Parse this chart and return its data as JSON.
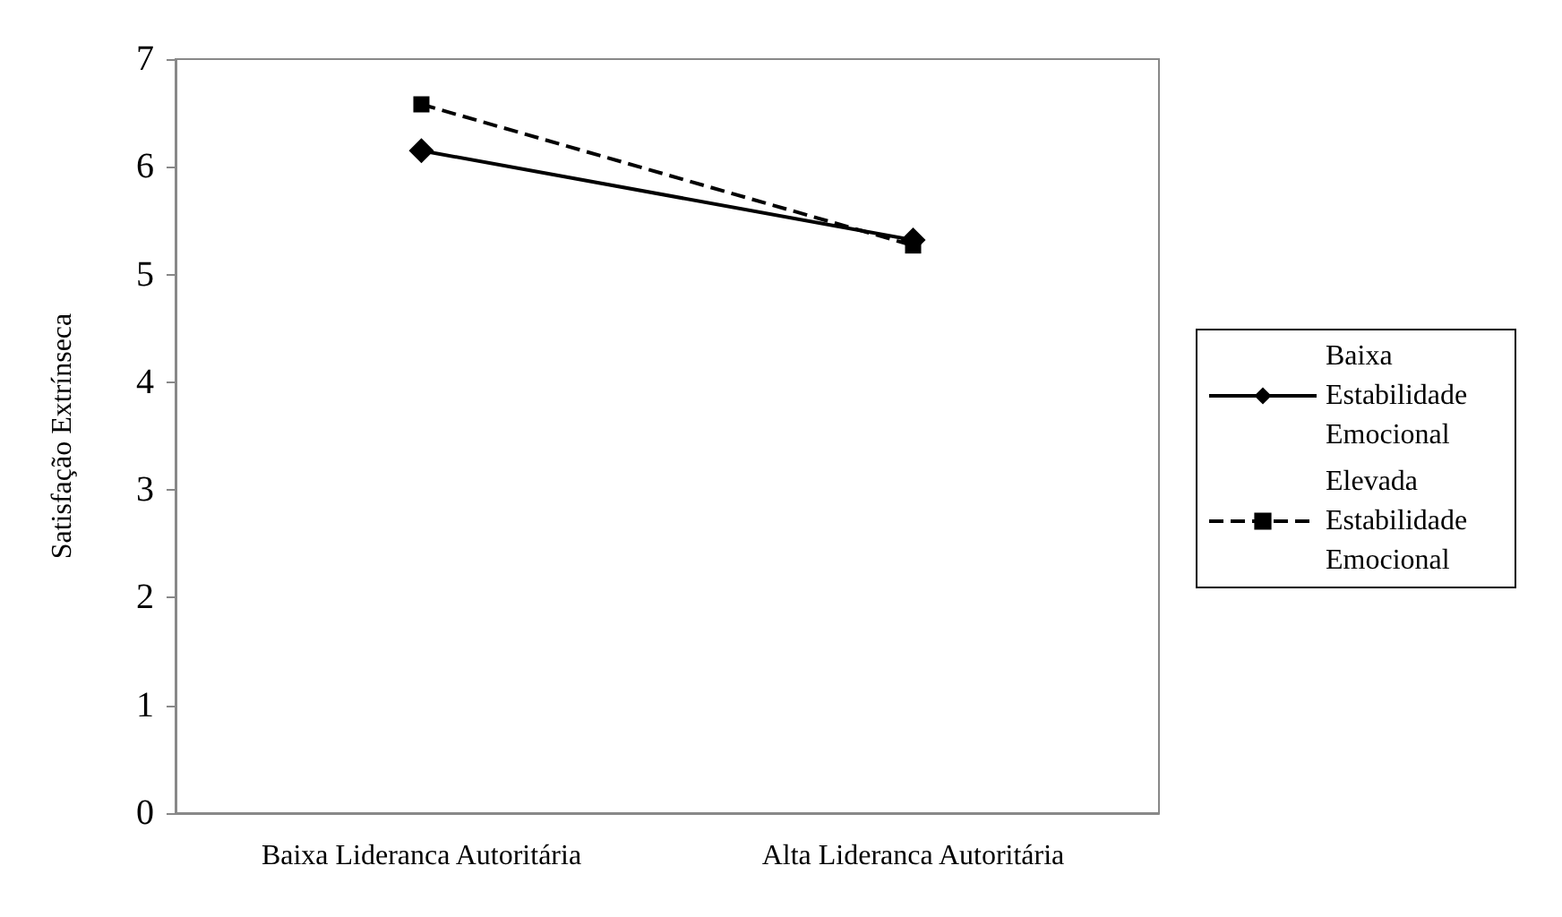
{
  "chart_data": {
    "type": "line",
    "ylabel": "Satisfação Extrínseca",
    "categories": [
      "Baixa Lideranca Autoritária",
      "Alta Lideranca Autoritária"
    ],
    "ylim": [
      0,
      7
    ],
    "yticks": [
      0,
      1,
      2,
      3,
      4,
      5,
      6,
      7
    ],
    "grid": false,
    "legend": "right",
    "series": [
      {
        "name": "Baixa Estabilidade Emocional",
        "color": "#000000",
        "marker": "diamond",
        "line_style": "solid",
        "values": [
          6.15,
          5.32
        ]
      },
      {
        "name": "Elevada Estabilidade Emocional",
        "color": "#000000",
        "marker": "square",
        "line_style": "dashed",
        "values": [
          6.58,
          5.27
        ]
      }
    ]
  }
}
